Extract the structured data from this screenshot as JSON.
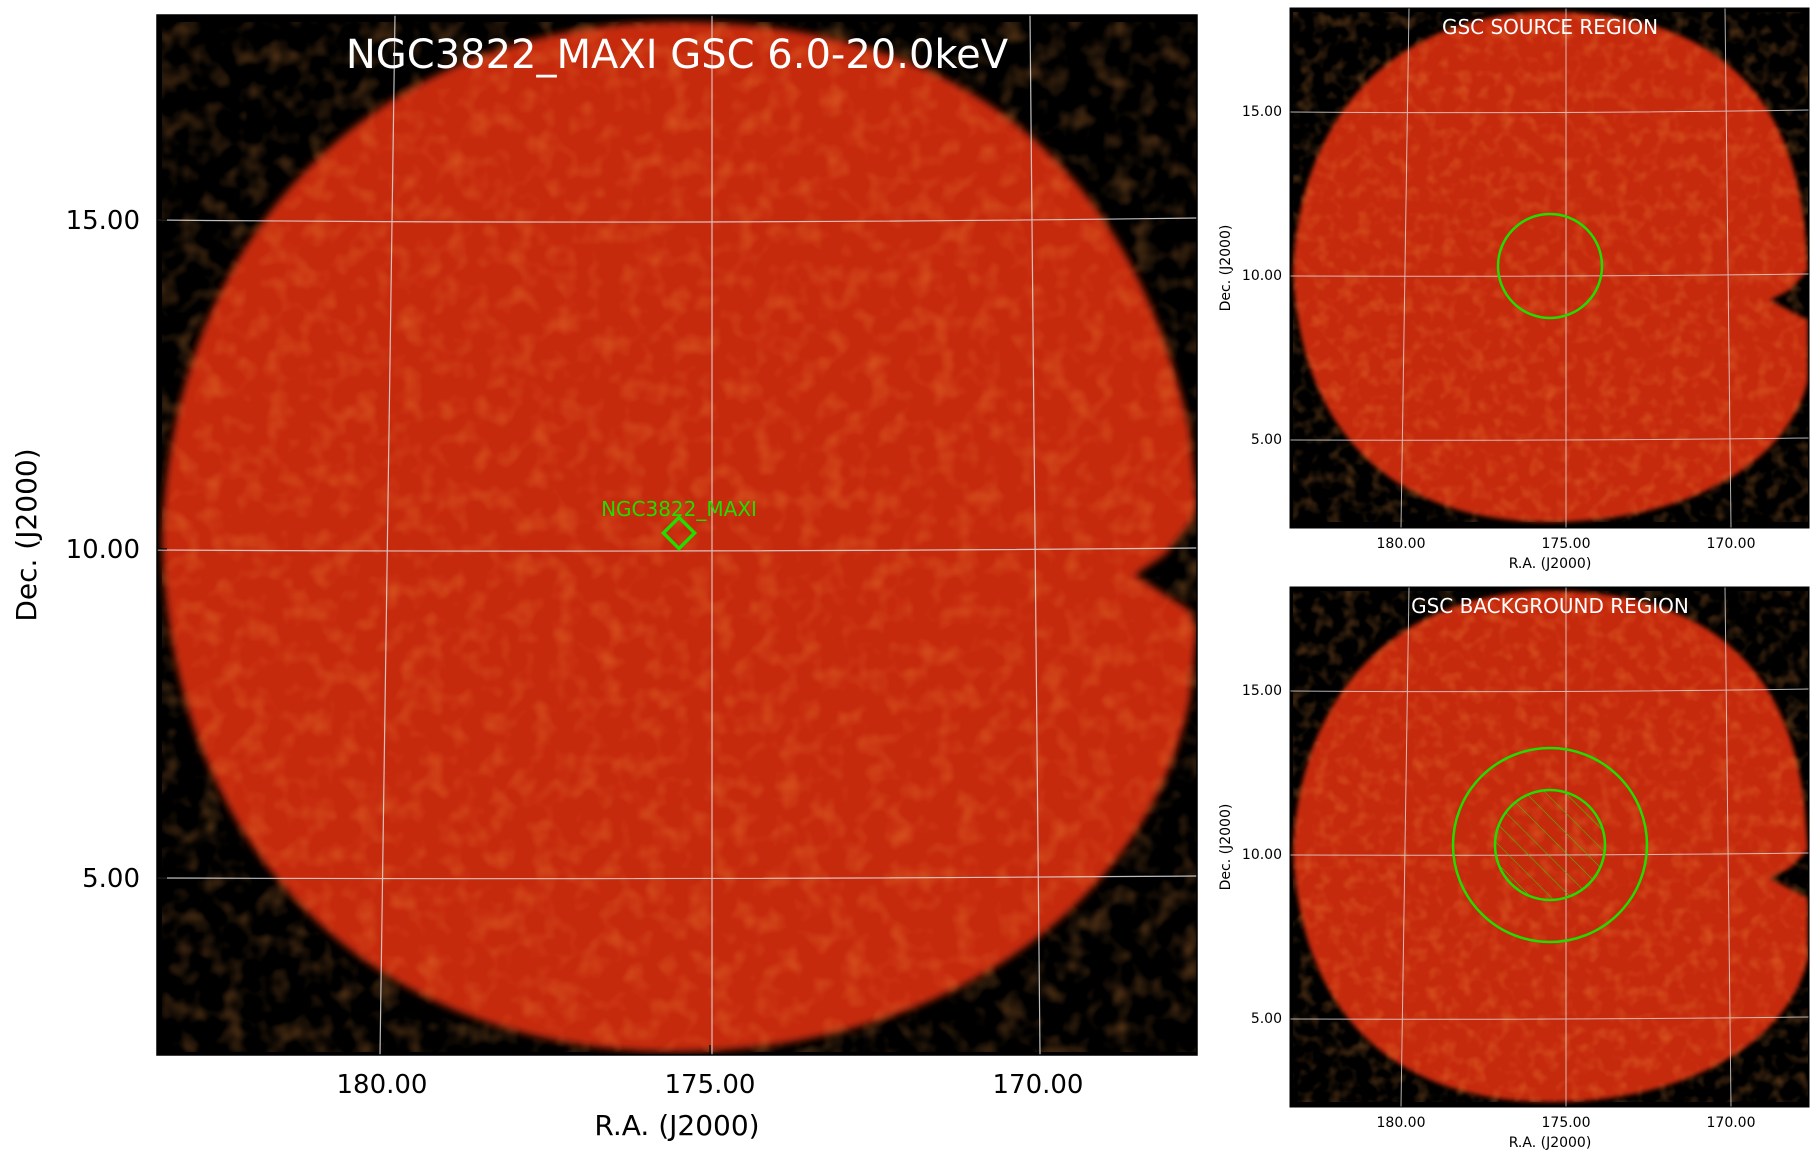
{
  "main_panel": {
    "title": "NGC3822_MAXI GSC 6.0-20.0keV",
    "xlabel": "R.A. (J2000)",
    "ylabel": "Dec. (J2000)",
    "xticks": [
      "180.00",
      "175.00",
      "170.00"
    ],
    "yticks": [
      "15.00",
      "10.00",
      "5.00"
    ],
    "source_label": "NGC3822_MAXI",
    "marker_color": "#22dd00"
  },
  "source_panel": {
    "title": "GSC SOURCE REGION",
    "xlabel": "R.A. (J2000)",
    "ylabel": "Dec. (J2000)",
    "xticks": [
      "180.00",
      "175.00",
      "170.00"
    ],
    "yticks": [
      "15.00",
      "10.00",
      "5.00"
    ]
  },
  "background_panel": {
    "title": "GSC BACKGROUND REGION",
    "xlabel": "R.A. (J2000)",
    "ylabel": "Dec. (J2000)",
    "xticks": [
      "180.00",
      "175.00",
      "170.00"
    ],
    "yticks": [
      "15.00",
      "10.00",
      "5.00"
    ]
  },
  "colors": {
    "sky_fill": "#c62b0c",
    "sky_dark": "#b01f06",
    "sky_light": "#e0460f",
    "background": "#000000",
    "grid": "#dddddd",
    "region": "#22dd00",
    "title_text": "#ffffff"
  }
}
